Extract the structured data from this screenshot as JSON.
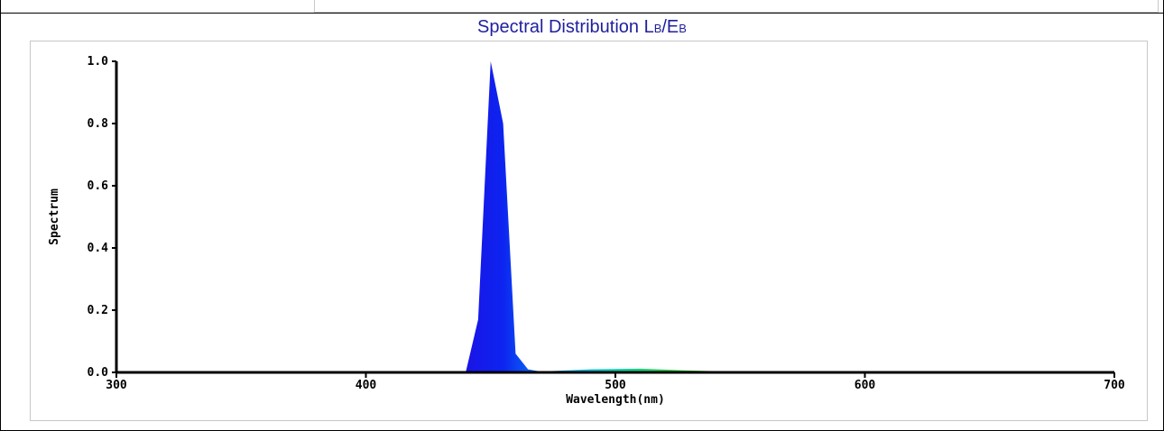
{
  "chart_data": {
    "type": "area",
    "title_main": "Spectral Distribution L",
    "title_sub1": "B",
    "title_mid": "/E",
    "title_sub2": "B",
    "xlabel": "Wavelength(nm)",
    "ylabel": "Spectrum",
    "xlim": [
      300,
      700
    ],
    "ylim": [
      0,
      1.0
    ],
    "x_ticks": [
      300,
      400,
      500,
      600,
      700
    ],
    "y_ticks": [
      "0.0",
      "0.2",
      "0.4",
      "0.6",
      "0.8",
      "1.0"
    ],
    "grid": false,
    "legend": "none",
    "x": [
      440,
      445,
      450,
      455,
      460,
      465,
      470,
      480,
      490,
      500,
      510,
      520,
      530,
      540,
      550,
      560,
      570
    ],
    "y": [
      0.0,
      0.17,
      1.0,
      0.8,
      0.06,
      0.01,
      0.003,
      0.006,
      0.01,
      0.011,
      0.012,
      0.009,
      0.006,
      0.004,
      0.002,
      0.001,
      0.0
    ],
    "colors": {
      "spectrum_stops": [
        {
          "nm": 440,
          "color": "#1a14e6"
        },
        {
          "nm": 455,
          "color": "#0d24f0"
        },
        {
          "nm": 465,
          "color": "#0a5cf5"
        },
        {
          "nm": 485,
          "color": "#00b4f0"
        },
        {
          "nm": 500,
          "color": "#00d2aa"
        },
        {
          "nm": 520,
          "color": "#30d050"
        },
        {
          "nm": 560,
          "color": "#80d800"
        }
      ],
      "title": "#1f1f9e"
    }
  }
}
